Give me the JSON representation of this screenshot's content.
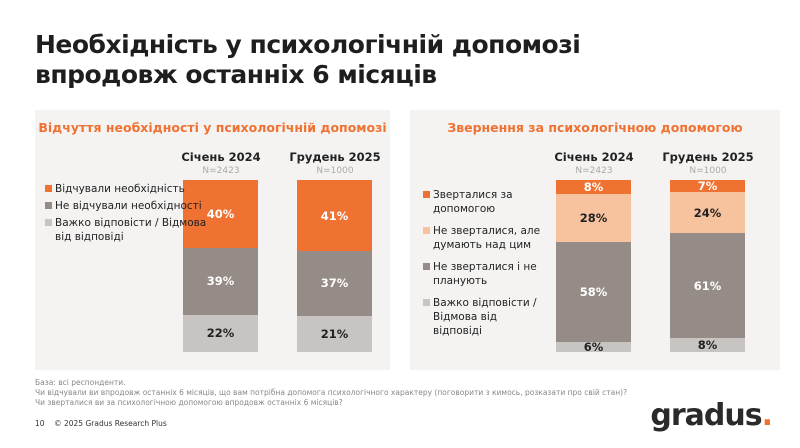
{
  "title_line1": "Необхідність у психологічній допомозі",
  "title_line2": "впродовж останніх 6 місяців",
  "colors": {
    "orange": "#f07232",
    "peach": "#f7c39e",
    "dark_gray": "#958c87",
    "light_gray": "#c8c4c1"
  },
  "chart_data": [
    {
      "type": "bar",
      "stacked": true,
      "title": "Відчуття необхідності у психологічній допомозі",
      "categories": [
        "Січень 2024",
        "Грудень 2025"
      ],
      "n": [
        "N=2423",
        "N=1000"
      ],
      "series": [
        {
          "name": "Відчували необхідність",
          "color": "#f07232",
          "values": [
            40,
            41
          ]
        },
        {
          "name": "Не відчували необхідності",
          "color": "#958c87",
          "values": [
            39,
            37
          ]
        },
        {
          "name": "Важко відповісти / Відмова від відповіді",
          "color": "#c8c4c1",
          "values": [
            22,
            21
          ]
        }
      ]
    },
    {
      "type": "bar",
      "stacked": true,
      "title": "Звернення за психологічною допомогою",
      "categories": [
        "Січень 2024",
        "Грудень 2025"
      ],
      "n": [
        "N=2423",
        "N=1000"
      ],
      "series": [
        {
          "name": "Зверталися за допомогою",
          "color": "#f07232",
          "values": [
            8,
            7
          ]
        },
        {
          "name": "Не зверталися, але думають над цим",
          "color": "#f7c39e",
          "values": [
            28,
            24
          ]
        },
        {
          "name": "Не зверталися і не планують",
          "color": "#958c87",
          "values": [
            58,
            61
          ]
        },
        {
          "name": "Важко відповісти / Відмова від відповіді",
          "color": "#c8c4c1",
          "values": [
            6,
            8
          ]
        }
      ]
    }
  ],
  "footnotes": [
    "База: всі респонденти.",
    "Чи відчували ви впродовж останніх 6 місяців, що вам потрібна допомога психологічного характеру (поговорити з кимось, розказати про свій стан)?",
    "Чи зверталися ви за психологічною допомогою впродовж останніх 6 місяців?"
  ],
  "page_number": "10",
  "copyright": "© 2025 Gradus Research Plus",
  "logo_text": "gradus"
}
